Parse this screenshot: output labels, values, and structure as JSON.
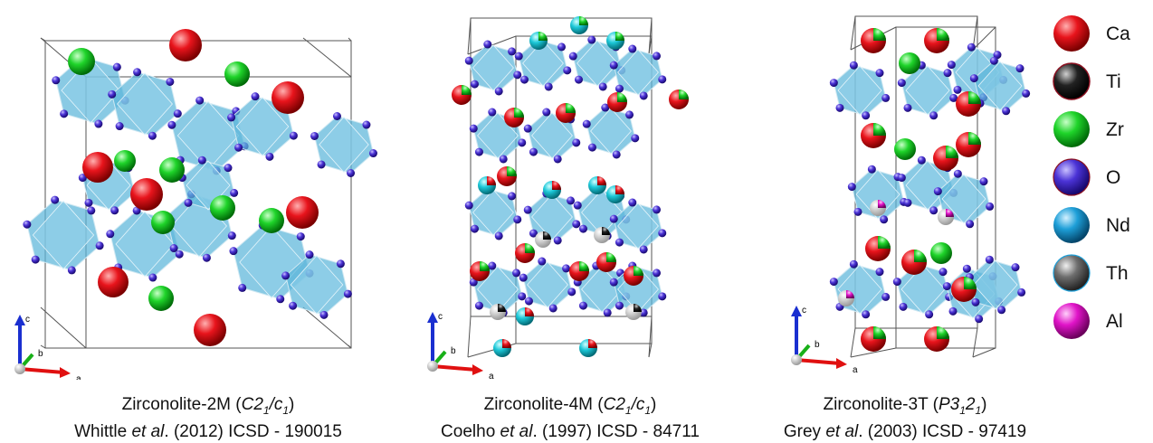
{
  "panels": [
    {
      "caption_line1_prefix": "Zirconolite-2M (",
      "caption_line1_sym": "C2",
      "caption_line1_sub": "1",
      "caption_line1_mid": "/c",
      "caption_line1_sub2": "1",
      "caption_line1_suffix": ")",
      "caption_line2_author": "Whittle ",
      "caption_line2_etal": "et al",
      "caption_line2_rest": ". (2012) ICSD - 190015"
    },
    {
      "caption_line1_prefix": "Zirconolite-4M (",
      "caption_line1_sym": "C2",
      "caption_line1_sub": "1",
      "caption_line1_mid": "/c",
      "caption_line1_sub2": "1",
      "caption_line1_suffix": ")",
      "caption_line2_author": "Coelho ",
      "caption_line2_etal": "et al",
      "caption_line2_rest": ". (1997) ICSD - 84711"
    },
    {
      "caption_line1_prefix": "Zirconolite-3T (",
      "caption_line1_sym": "P3",
      "caption_line1_sub": "1",
      "caption_line1_mid": "2",
      "caption_line1_sub2": "1",
      "caption_line1_suffix": ")",
      "caption_line2_author": "Grey ",
      "caption_line2_etal": "et al",
      "caption_line2_rest": ". (2003) ICSD - 97419"
    }
  ],
  "axes": {
    "c": "c",
    "b": "b",
    "a": "a"
  },
  "legend": [
    {
      "label": "Ca",
      "color": "#e8141c"
    },
    {
      "label": "Ti",
      "color": "#111111"
    },
    {
      "label": "Zr",
      "color": "#1fd42a"
    },
    {
      "label": "O",
      "color": "#4b33d6"
    },
    {
      "label": "Nd",
      "color": "#1e9fd8"
    },
    {
      "label": "Th",
      "color": "#6e6e6e"
    },
    {
      "label": "Al",
      "color": "#e014c8"
    }
  ],
  "colors": {
    "octahedron": "#5cb6d9",
    "cell_edge": "#444444"
  }
}
